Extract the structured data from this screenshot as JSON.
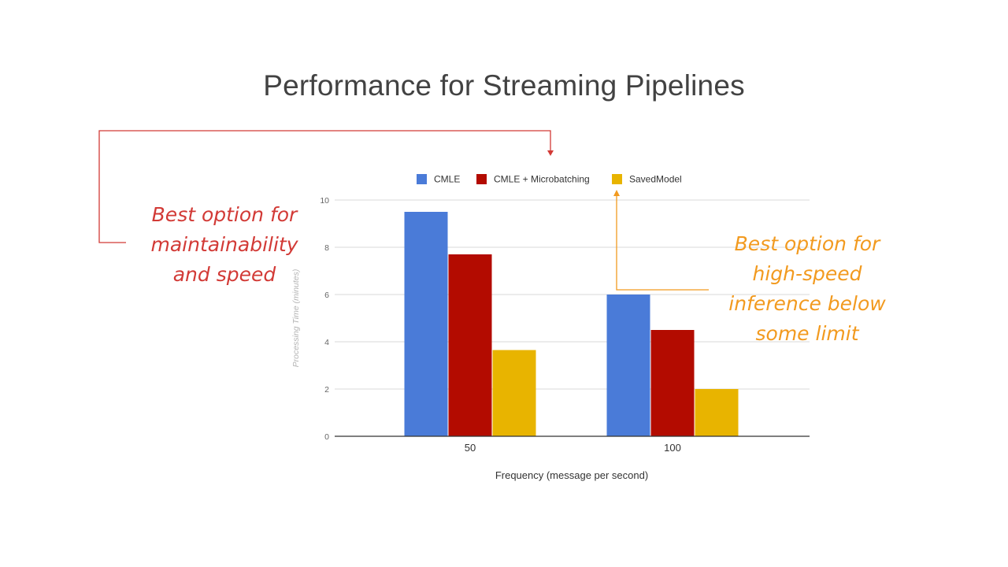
{
  "slide": {
    "title": "Performance for Streaming Pipelines"
  },
  "annotations": {
    "red_note": [
      "Best option for",
      "maintainability",
      "and speed"
    ],
    "orange_note": [
      "Best option for",
      "high-speed",
      "inference below",
      "some limit"
    ],
    "red_color": "#d23a36",
    "orange_color": "#f29a1f"
  },
  "chart_data": {
    "type": "bar",
    "title": "",
    "categories": [
      "50",
      "100"
    ],
    "series": [
      {
        "name": "CMLE",
        "color": "#4a7bd8",
        "values": [
          9.5,
          6.0
        ]
      },
      {
        "name": "CMLE + Microbatching",
        "color": "#b30b00",
        "values": [
          7.7,
          4.5
        ]
      },
      {
        "name": "SavedModel",
        "color": "#e8b400",
        "values": [
          3.65,
          2.0
        ]
      }
    ],
    "xlabel": "Frequency (message per second)",
    "ylabel": "Processing Time (minutes)",
    "ylim": [
      0,
      10
    ],
    "yticks": [
      "0",
      "2",
      "4",
      "6",
      "8",
      "10"
    ],
    "grid": true,
    "legend": "top"
  }
}
